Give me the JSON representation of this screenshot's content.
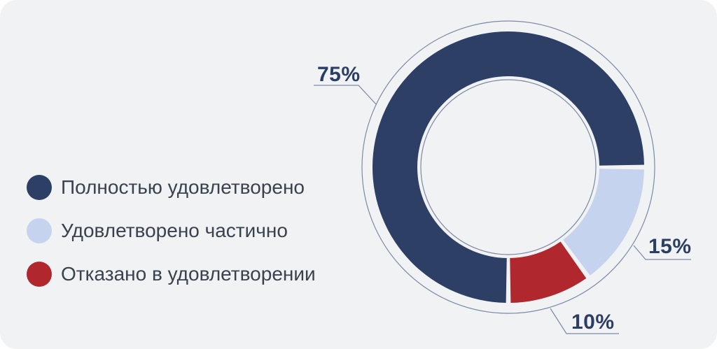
{
  "card": {
    "background_color": "#f1f2f4"
  },
  "chart_data": {
    "type": "pie",
    "subtype": "donut",
    "title": "",
    "categories": [
      "Полностью удовлетворено",
      "Удовлетворено частично",
      "Отказано в удовлетворении"
    ],
    "values": [
      75,
      15,
      10
    ],
    "unit": "%",
    "value_labels": [
      "75%",
      "15%",
      "10%"
    ],
    "colors": [
      "#2d3f64",
      "#c6d3ee",
      "#b0282d"
    ],
    "start_angle_deg": 180,
    "direction": "clockwise",
    "legend_position": "left",
    "accent_text_color": "#2c3e63",
    "outline_color": "#7b89a6"
  },
  "legend": {
    "items": [
      {
        "label": "Полностью удовлетворено",
        "color": "#2d3f64"
      },
      {
        "label": "Удовлетворено частично",
        "color": "#c6d3ee"
      },
      {
        "label": "Отказано в удовлетворении",
        "color": "#b0282d"
      }
    ]
  }
}
